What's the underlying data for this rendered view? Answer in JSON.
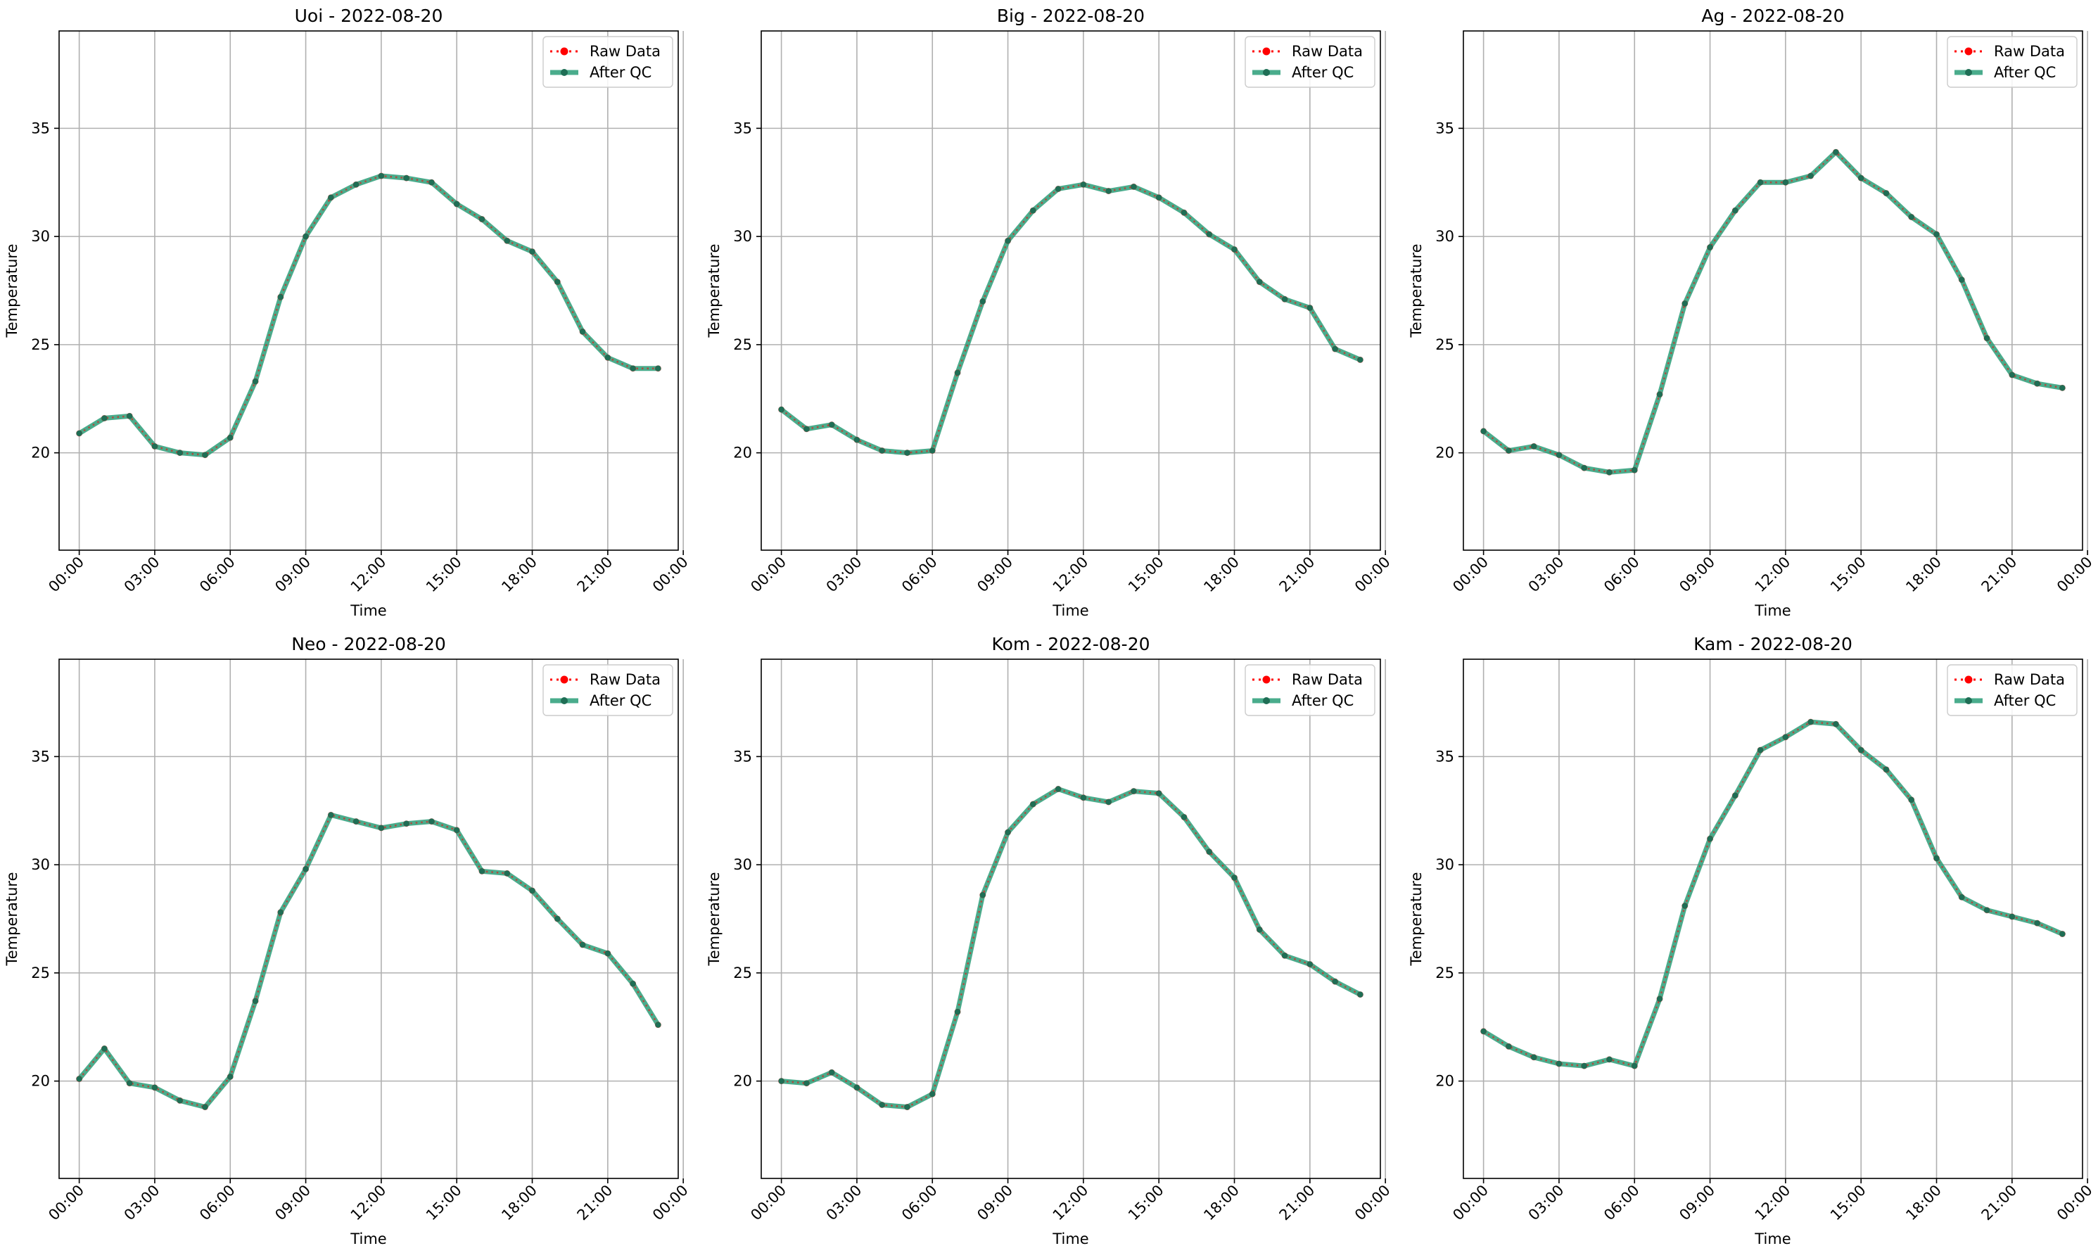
{
  "figure": {
    "colors": {
      "raw": "#ff0000",
      "qc": "#2a9d78",
      "qc_marker": "#1f6e55",
      "grid": "#b0b0b0",
      "axis": "#000000"
    }
  },
  "chart_data": [
    {
      "type": "line",
      "title": "Uoi - 2022-08-20",
      "xlabel": "Time",
      "ylabel": "Temperature",
      "ylim": [
        15.5,
        39.5
      ],
      "xlim": [
        -0.8,
        23.8
      ],
      "yticks": [
        20,
        25,
        30,
        35
      ],
      "xtick_labels": [
        "00:00",
        "03:00",
        "06:00",
        "09:00",
        "12:00",
        "15:00",
        "18:00",
        "21:00",
        "00:00"
      ],
      "grid": true,
      "legend": [
        "Raw Data",
        "After QC"
      ],
      "legend_position": "top-right",
      "x": [
        "00:00",
        "01:00",
        "02:00",
        "03:00",
        "04:00",
        "05:00",
        "06:00",
        "07:00",
        "08:00",
        "09:00",
        "10:00",
        "11:00",
        "12:00",
        "13:00",
        "14:00",
        "15:00",
        "16:00",
        "17:00",
        "18:00",
        "19:00",
        "20:00",
        "21:00",
        "22:00",
        "23:00"
      ],
      "series": [
        {
          "name": "Raw Data",
          "values": [
            20.9,
            21.6,
            21.7,
            20.3,
            20.0,
            19.9,
            20.7,
            23.3,
            27.2,
            30.0,
            31.8,
            32.4,
            32.8,
            32.7,
            32.5,
            31.5,
            30.8,
            29.8,
            29.3,
            27.9,
            25.6,
            24.4,
            23.9,
            23.9
          ]
        },
        {
          "name": "After QC",
          "values": [
            20.9,
            21.6,
            21.7,
            20.3,
            20.0,
            19.9,
            20.7,
            23.3,
            27.2,
            30.0,
            31.8,
            32.4,
            32.8,
            32.7,
            32.5,
            31.5,
            30.8,
            29.8,
            29.3,
            27.9,
            25.6,
            24.4,
            23.9,
            23.9
          ]
        }
      ]
    },
    {
      "type": "line",
      "title": "Big - 2022-08-20",
      "xlabel": "Time",
      "ylabel": "Temperature",
      "ylim": [
        15.5,
        39.5
      ],
      "xlim": [
        -0.8,
        23.8
      ],
      "yticks": [
        20,
        25,
        30,
        35
      ],
      "xtick_labels": [
        "00:00",
        "03:00",
        "06:00",
        "09:00",
        "12:00",
        "15:00",
        "18:00",
        "21:00",
        "00:00"
      ],
      "grid": true,
      "legend": [
        "Raw Data",
        "After QC"
      ],
      "legend_position": "top-right",
      "x": [
        "00:00",
        "01:00",
        "02:00",
        "03:00",
        "04:00",
        "05:00",
        "06:00",
        "07:00",
        "08:00",
        "09:00",
        "10:00",
        "11:00",
        "12:00",
        "13:00",
        "14:00",
        "15:00",
        "16:00",
        "17:00",
        "18:00",
        "19:00",
        "20:00",
        "21:00",
        "22:00",
        "23:00"
      ],
      "series": [
        {
          "name": "Raw Data",
          "values": [
            22.0,
            21.1,
            21.3,
            20.6,
            20.1,
            20.0,
            20.1,
            23.7,
            27.0,
            29.8,
            31.2,
            32.2,
            32.4,
            32.1,
            32.3,
            31.8,
            31.1,
            30.1,
            29.4,
            27.9,
            27.1,
            26.7,
            24.8,
            24.3
          ]
        },
        {
          "name": "After QC",
          "values": [
            22.0,
            21.1,
            21.3,
            20.6,
            20.1,
            20.0,
            20.1,
            23.7,
            27.0,
            29.8,
            31.2,
            32.2,
            32.4,
            32.1,
            32.3,
            31.8,
            31.1,
            30.1,
            29.4,
            27.9,
            27.1,
            26.7,
            24.8,
            24.3
          ]
        }
      ]
    },
    {
      "type": "line",
      "title": "Ag - 2022-08-20",
      "xlabel": "Time",
      "ylabel": "Temperature",
      "ylim": [
        15.5,
        39.5
      ],
      "xlim": [
        -0.8,
        23.8
      ],
      "yticks": [
        20,
        25,
        30,
        35
      ],
      "xtick_labels": [
        "00:00",
        "03:00",
        "06:00",
        "09:00",
        "12:00",
        "15:00",
        "18:00",
        "21:00",
        "00:00"
      ],
      "grid": true,
      "legend": [
        "Raw Data",
        "After QC"
      ],
      "legend_position": "top-right",
      "x": [
        "00:00",
        "01:00",
        "02:00",
        "03:00",
        "04:00",
        "05:00",
        "06:00",
        "07:00",
        "08:00",
        "09:00",
        "10:00",
        "11:00",
        "12:00",
        "13:00",
        "14:00",
        "15:00",
        "16:00",
        "17:00",
        "18:00",
        "19:00",
        "20:00",
        "21:00",
        "22:00",
        "23:00"
      ],
      "series": [
        {
          "name": "Raw Data",
          "values": [
            21.0,
            20.1,
            20.3,
            19.9,
            19.3,
            19.1,
            19.2,
            22.7,
            26.9,
            29.5,
            31.2,
            32.5,
            32.5,
            32.8,
            33.9,
            32.7,
            32.0,
            30.9,
            30.1,
            28.0,
            25.3,
            23.6,
            23.2,
            23.0
          ]
        },
        {
          "name": "After QC",
          "values": [
            21.0,
            20.1,
            20.3,
            19.9,
            19.3,
            19.1,
            19.2,
            22.7,
            26.9,
            29.5,
            31.2,
            32.5,
            32.5,
            32.8,
            33.9,
            32.7,
            32.0,
            30.9,
            30.1,
            28.0,
            25.3,
            23.6,
            23.2,
            23.0
          ]
        }
      ]
    },
    {
      "type": "line",
      "title": "Neo - 2022-08-20",
      "xlabel": "Time",
      "ylabel": "Temperature",
      "ylim": [
        15.5,
        39.5
      ],
      "xlim": [
        -0.8,
        23.8
      ],
      "yticks": [
        20,
        25,
        30,
        35
      ],
      "xtick_labels": [
        "00:00",
        "03:00",
        "06:00",
        "09:00",
        "12:00",
        "15:00",
        "18:00",
        "21:00",
        "00:00"
      ],
      "grid": true,
      "legend": [
        "Raw Data",
        "After QC"
      ],
      "legend_position": "top-right",
      "x": [
        "00:00",
        "01:00",
        "02:00",
        "03:00",
        "04:00",
        "05:00",
        "06:00",
        "07:00",
        "08:00",
        "09:00",
        "10:00",
        "11:00",
        "12:00",
        "13:00",
        "14:00",
        "15:00",
        "16:00",
        "17:00",
        "18:00",
        "19:00",
        "20:00",
        "21:00",
        "22:00",
        "23:00"
      ],
      "series": [
        {
          "name": "Raw Data",
          "values": [
            20.1,
            21.5,
            19.9,
            19.7,
            19.1,
            18.8,
            20.2,
            23.7,
            27.8,
            29.8,
            32.3,
            32.0,
            31.7,
            31.9,
            32.0,
            31.6,
            29.7,
            29.6,
            28.8,
            27.5,
            26.3,
            25.9,
            24.5,
            22.6
          ]
        },
        {
          "name": "After QC",
          "values": [
            20.1,
            21.5,
            19.9,
            19.7,
            19.1,
            18.8,
            20.2,
            23.7,
            27.8,
            29.8,
            32.3,
            32.0,
            31.7,
            31.9,
            32.0,
            31.6,
            29.7,
            29.6,
            28.8,
            27.5,
            26.3,
            25.9,
            24.5,
            22.6
          ]
        }
      ]
    },
    {
      "type": "line",
      "title": "Kom - 2022-08-20",
      "xlabel": "Time",
      "ylabel": "Temperature",
      "ylim": [
        15.5,
        39.5
      ],
      "xlim": [
        -0.8,
        23.8
      ],
      "yticks": [
        20,
        25,
        30,
        35
      ],
      "xtick_labels": [
        "00:00",
        "03:00",
        "06:00",
        "09:00",
        "12:00",
        "15:00",
        "18:00",
        "21:00",
        "00:00"
      ],
      "grid": true,
      "legend": [
        "Raw Data",
        "After QC"
      ],
      "legend_position": "top-right",
      "x": [
        "00:00",
        "01:00",
        "02:00",
        "03:00",
        "04:00",
        "05:00",
        "06:00",
        "07:00",
        "08:00",
        "09:00",
        "10:00",
        "11:00",
        "12:00",
        "13:00",
        "14:00",
        "15:00",
        "16:00",
        "17:00",
        "18:00",
        "19:00",
        "20:00",
        "21:00",
        "22:00",
        "23:00"
      ],
      "series": [
        {
          "name": "Raw Data",
          "values": [
            20.0,
            19.9,
            20.4,
            19.7,
            18.9,
            18.8,
            19.4,
            23.2,
            28.6,
            31.5,
            32.8,
            33.5,
            33.1,
            32.9,
            33.4,
            33.3,
            32.2,
            30.6,
            29.4,
            27.0,
            25.8,
            25.4,
            24.6,
            24.0
          ]
        },
        {
          "name": "After QC",
          "values": [
            20.0,
            19.9,
            20.4,
            19.7,
            18.9,
            18.8,
            19.4,
            23.2,
            28.6,
            31.5,
            32.8,
            33.5,
            33.1,
            32.9,
            33.4,
            33.3,
            32.2,
            30.6,
            29.4,
            27.0,
            25.8,
            25.4,
            24.6,
            24.0
          ]
        }
      ]
    },
    {
      "type": "line",
      "title": "Kam - 2022-08-20",
      "xlabel": "Time",
      "ylabel": "Temperature",
      "ylim": [
        15.5,
        39.5
      ],
      "xlim": [
        -0.8,
        23.8
      ],
      "yticks": [
        20,
        25,
        30,
        35
      ],
      "xtick_labels": [
        "00:00",
        "03:00",
        "06:00",
        "09:00",
        "12:00",
        "15:00",
        "18:00",
        "21:00",
        "00:00"
      ],
      "grid": true,
      "legend": [
        "Raw Data",
        "After QC"
      ],
      "legend_position": "top-right",
      "x": [
        "00:00",
        "01:00",
        "02:00",
        "03:00",
        "04:00",
        "05:00",
        "06:00",
        "07:00",
        "08:00",
        "09:00",
        "10:00",
        "11:00",
        "12:00",
        "13:00",
        "14:00",
        "15:00",
        "16:00",
        "17:00",
        "18:00",
        "19:00",
        "20:00",
        "21:00",
        "22:00",
        "23:00"
      ],
      "series": [
        {
          "name": "Raw Data",
          "values": [
            22.3,
            21.6,
            21.1,
            20.8,
            20.7,
            21.0,
            20.7,
            23.8,
            28.1,
            31.2,
            33.2,
            35.3,
            35.9,
            36.6,
            36.5,
            35.3,
            34.4,
            33.0,
            30.3,
            28.5,
            27.9,
            27.6,
            27.3,
            26.8
          ]
        },
        {
          "name": "After QC",
          "values": [
            22.3,
            21.6,
            21.1,
            20.8,
            20.7,
            21.0,
            20.7,
            23.8,
            28.1,
            31.2,
            33.2,
            35.3,
            35.9,
            36.6,
            36.5,
            35.3,
            34.4,
            33.0,
            30.3,
            28.5,
            27.9,
            27.6,
            27.3,
            26.8
          ]
        }
      ]
    }
  ]
}
